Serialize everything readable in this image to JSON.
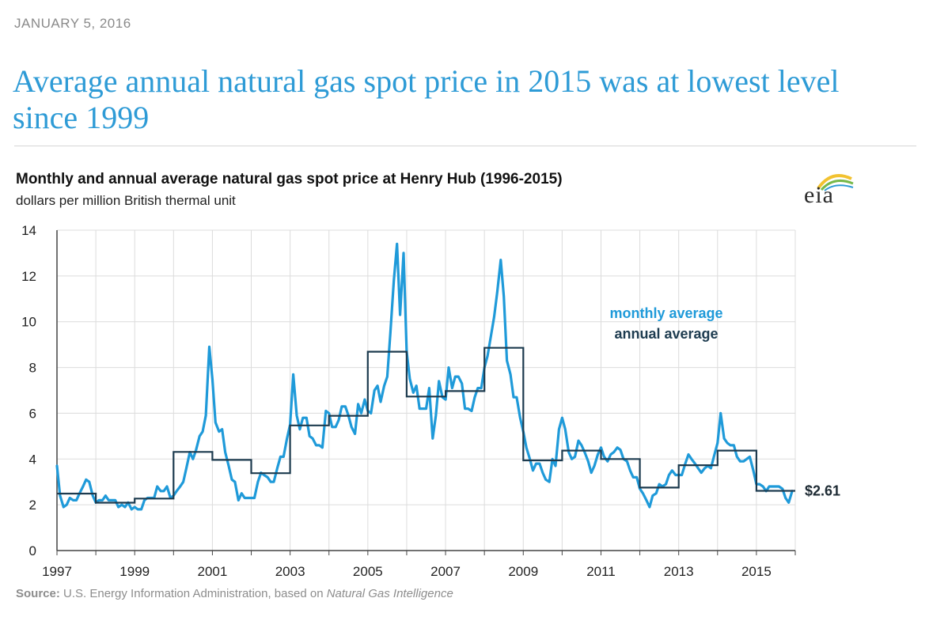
{
  "date": "JANUARY 5, 2016",
  "headline": "Average annual natural gas spot price in 2015 was at lowest level since 1999",
  "logo_text": "eia",
  "source": {
    "label": "Source:",
    "text": " U.S. Energy Information Administration, based on ",
    "italic": "Natural Gas Intelligence"
  },
  "colors": {
    "headline": "#2e9bd6",
    "monthly": "#1f9ad9",
    "annual": "#1d3b4f",
    "grid": "#dcdcdc",
    "logo_sun": "#f2c230",
    "logo_leaf": "#77b84a"
  },
  "chart_data": {
    "type": "line",
    "title": "Monthly and annual average natural gas spot price at Henry Hub (1996-2015)",
    "subtitle": "dollars per million British thermal unit",
    "ylim": [
      0,
      14
    ],
    "yticks": [
      0,
      2,
      4,
      6,
      8,
      10,
      12,
      14
    ],
    "xlim": [
      1997,
      2016
    ],
    "xticks": [
      1997,
      1999,
      2001,
      2003,
      2005,
      2007,
      2009,
      2011,
      2013,
      2015
    ],
    "grid": true,
    "legend_position": "right",
    "end_label": "$2.61",
    "series": [
      {
        "name": "monthly average",
        "style": "line",
        "x": [
          1997.0,
          1997.08,
          1997.17,
          1997.25,
          1997.33,
          1997.42,
          1997.5,
          1997.58,
          1997.67,
          1997.75,
          1997.83,
          1997.92,
          1998.0,
          1998.08,
          1998.17,
          1998.25,
          1998.33,
          1998.42,
          1998.5,
          1998.58,
          1998.67,
          1998.75,
          1998.83,
          1998.92,
          1999.0,
          1999.08,
          1999.17,
          1999.25,
          1999.33,
          1999.42,
          1999.5,
          1999.58,
          1999.67,
          1999.75,
          1999.83,
          1999.92,
          2000.0,
          2000.08,
          2000.17,
          2000.25,
          2000.33,
          2000.42,
          2000.5,
          2000.58,
          2000.67,
          2000.75,
          2000.83,
          2000.92,
          2001.0,
          2001.08,
          2001.17,
          2001.25,
          2001.33,
          2001.42,
          2001.5,
          2001.58,
          2001.67,
          2001.75,
          2001.83,
          2001.92,
          2002.0,
          2002.08,
          2002.17,
          2002.25,
          2002.33,
          2002.42,
          2002.5,
          2002.58,
          2002.67,
          2002.75,
          2002.83,
          2002.92,
          2003.0,
          2003.08,
          2003.17,
          2003.25,
          2003.33,
          2003.42,
          2003.5,
          2003.58,
          2003.67,
          2003.75,
          2003.83,
          2003.92,
          2004.0,
          2004.08,
          2004.17,
          2004.25,
          2004.33,
          2004.42,
          2004.5,
          2004.58,
          2004.67,
          2004.75,
          2004.83,
          2004.92,
          2005.0,
          2005.08,
          2005.17,
          2005.25,
          2005.33,
          2005.42,
          2005.5,
          2005.58,
          2005.67,
          2005.75,
          2005.83,
          2005.92,
          2006.0,
          2006.08,
          2006.17,
          2006.25,
          2006.33,
          2006.42,
          2006.5,
          2006.58,
          2006.67,
          2006.75,
          2006.83,
          2006.92,
          2007.0,
          2007.08,
          2007.17,
          2007.25,
          2007.33,
          2007.42,
          2007.5,
          2007.58,
          2007.67,
          2007.75,
          2007.83,
          2007.92,
          2008.0,
          2008.08,
          2008.17,
          2008.25,
          2008.33,
          2008.42,
          2008.5,
          2008.58,
          2008.67,
          2008.75,
          2008.83,
          2008.92,
          2009.0,
          2009.08,
          2009.17,
          2009.25,
          2009.33,
          2009.42,
          2009.5,
          2009.58,
          2009.67,
          2009.75,
          2009.83,
          2009.92,
          2010.0,
          2010.08,
          2010.17,
          2010.25,
          2010.33,
          2010.42,
          2010.5,
          2010.58,
          2010.67,
          2010.75,
          2010.83,
          2010.92,
          2011.0,
          2011.08,
          2011.17,
          2011.25,
          2011.33,
          2011.42,
          2011.5,
          2011.58,
          2011.67,
          2011.75,
          2011.83,
          2011.92,
          2012.0,
          2012.08,
          2012.17,
          2012.25,
          2012.33,
          2012.42,
          2012.5,
          2012.58,
          2012.67,
          2012.75,
          2012.83,
          2012.92,
          2013.0,
          2013.08,
          2013.17,
          2013.25,
          2013.33,
          2013.42,
          2013.5,
          2013.58,
          2013.67,
          2013.75,
          2013.83,
          2013.92,
          2014.0,
          2014.08,
          2014.17,
          2014.25,
          2014.33,
          2014.42,
          2014.5,
          2014.58,
          2014.67,
          2014.75,
          2014.83,
          2014.92,
          2015.0,
          2015.08,
          2015.17,
          2015.25,
          2015.33,
          2015.42,
          2015.5,
          2015.58,
          2015.67,
          2015.75,
          2015.83,
          2015.92
        ],
        "y": [
          3.7,
          2.4,
          1.9,
          2.0,
          2.3,
          2.2,
          2.2,
          2.5,
          2.8,
          3.1,
          3.0,
          2.4,
          2.1,
          2.2,
          2.2,
          2.4,
          2.2,
          2.2,
          2.2,
          1.9,
          2.0,
          1.9,
          2.1,
          1.8,
          1.9,
          1.8,
          1.8,
          2.2,
          2.3,
          2.3,
          2.3,
          2.8,
          2.6,
          2.6,
          2.8,
          2.3,
          2.4,
          2.6,
          2.8,
          3.0,
          3.6,
          4.3,
          4.0,
          4.4,
          5.0,
          5.2,
          5.9,
          8.9,
          7.5,
          5.6,
          5.2,
          5.3,
          4.3,
          3.7,
          3.1,
          3.0,
          2.2,
          2.5,
          2.3,
          2.3,
          2.3,
          2.3,
          3.0,
          3.4,
          3.3,
          3.2,
          3.0,
          3.0,
          3.6,
          4.1,
          4.1,
          4.9,
          5.5,
          7.7,
          5.9,
          5.3,
          5.8,
          5.8,
          5.0,
          4.9,
          4.6,
          4.6,
          4.5,
          6.1,
          6.0,
          5.4,
          5.4,
          5.7,
          6.3,
          6.3,
          5.9,
          5.4,
          5.1,
          6.4,
          6.0,
          6.6,
          6.1,
          6.0,
          7.0,
          7.2,
          6.5,
          7.2,
          7.6,
          9.5,
          11.8,
          13.4,
          10.3,
          13.0,
          8.7,
          7.5,
          6.9,
          7.2,
          6.2,
          6.2,
          6.2,
          7.1,
          4.9,
          5.9,
          7.4,
          6.7,
          6.6,
          8.0,
          7.1,
          7.6,
          7.6,
          7.3,
          6.2,
          6.2,
          6.1,
          6.7,
          7.1,
          7.1,
          8.0,
          8.5,
          9.4,
          10.2,
          11.3,
          12.7,
          11.1,
          8.3,
          7.7,
          6.7,
          6.7,
          5.8,
          5.2,
          4.5,
          4.0,
          3.5,
          3.8,
          3.8,
          3.4,
          3.1,
          3.0,
          4.0,
          3.7,
          5.3,
          5.8,
          5.3,
          4.3,
          4.0,
          4.1,
          4.8,
          4.6,
          4.3,
          3.9,
          3.4,
          3.7,
          4.2,
          4.5,
          4.1,
          3.9,
          4.2,
          4.3,
          4.5,
          4.4,
          4.0,
          3.9,
          3.5,
          3.2,
          3.2,
          2.7,
          2.5,
          2.2,
          1.9,
          2.4,
          2.5,
          2.9,
          2.8,
          2.9,
          3.3,
          3.5,
          3.3,
          3.3,
          3.3,
          3.8,
          4.2,
          4.0,
          3.8,
          3.6,
          3.4,
          3.6,
          3.7,
          3.6,
          4.2,
          4.7,
          6.0,
          4.9,
          4.7,
          4.6,
          4.6,
          4.1,
          3.9,
          3.9,
          4.0,
          4.1,
          3.5,
          2.9,
          2.9,
          2.8,
          2.6,
          2.8,
          2.8,
          2.8,
          2.8,
          2.7,
          2.3,
          2.1,
          2.6
        ]
      },
      {
        "name": "annual average",
        "style": "step",
        "years": [
          1997,
          1998,
          1999,
          2000,
          2001,
          2002,
          2003,
          2004,
          2005,
          2006,
          2007,
          2008,
          2009,
          2010,
          2011,
          2012,
          2013,
          2014,
          2015
        ],
        "values": [
          2.49,
          2.09,
          2.27,
          4.31,
          3.96,
          3.38,
          5.47,
          5.89,
          8.69,
          6.73,
          6.97,
          8.86,
          3.94,
          4.37,
          4.0,
          2.75,
          3.73,
          4.37,
          2.61
        ]
      }
    ]
  }
}
